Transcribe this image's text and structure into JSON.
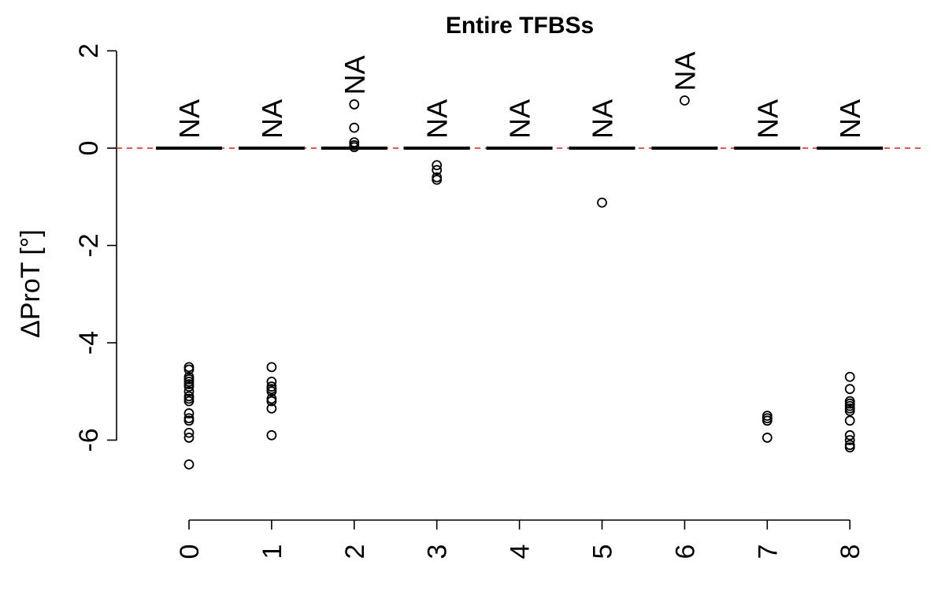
{
  "chart_data": {
    "type": "box",
    "title": "Entire TFBSs",
    "xlabel": "",
    "ylabel": "ΔProT [°]",
    "ylim": [
      -7.2,
      2.0
    ],
    "y_ticks": [
      2,
      0,
      -2,
      -4,
      -6
    ],
    "y_tick_labels": [
      "2",
      "0",
      "-2",
      "-4",
      "-6"
    ],
    "categories": [
      "0",
      "1",
      "2",
      "3",
      "4",
      "5",
      "6",
      "7",
      "8"
    ],
    "medians": [
      0,
      0,
      0,
      0,
      0,
      0,
      0,
      0,
      0
    ],
    "box_annotations": [
      "NA",
      "NA",
      "NA",
      "NA",
      "NA",
      "NA",
      "NA",
      "NA",
      "NA"
    ],
    "reference_line": {
      "y": 0,
      "color": "#e31a1c",
      "style": "dashed"
    },
    "outliers": [
      [
        -4.5,
        -4.55,
        -4.7,
        -4.75,
        -4.8,
        -4.85,
        -4.9,
        -5.0,
        -5.1,
        -5.15,
        -5.2,
        -5.45,
        -5.55,
        -5.6,
        -5.85,
        -5.95,
        -6.5
      ],
      [
        -4.5,
        -4.8,
        -4.9,
        -4.95,
        -5.0,
        -5.15,
        -5.2,
        -5.35,
        -5.9
      ],
      [
        0.9,
        0.42,
        0.12,
        0.06,
        0.02
      ],
      [
        -0.35,
        -0.45,
        -0.6,
        -0.65
      ],
      [],
      [
        -1.12
      ],
      [
        0.98
      ],
      [
        -5.5,
        -5.55,
        -5.6,
        -5.95
      ],
      [
        -4.7,
        -4.95,
        -5.2,
        -5.25,
        -5.3,
        -5.35,
        -5.4,
        -5.6,
        -5.9,
        -6.0,
        -6.1,
        -6.15
      ]
    ],
    "grid": false,
    "legend": "none"
  }
}
